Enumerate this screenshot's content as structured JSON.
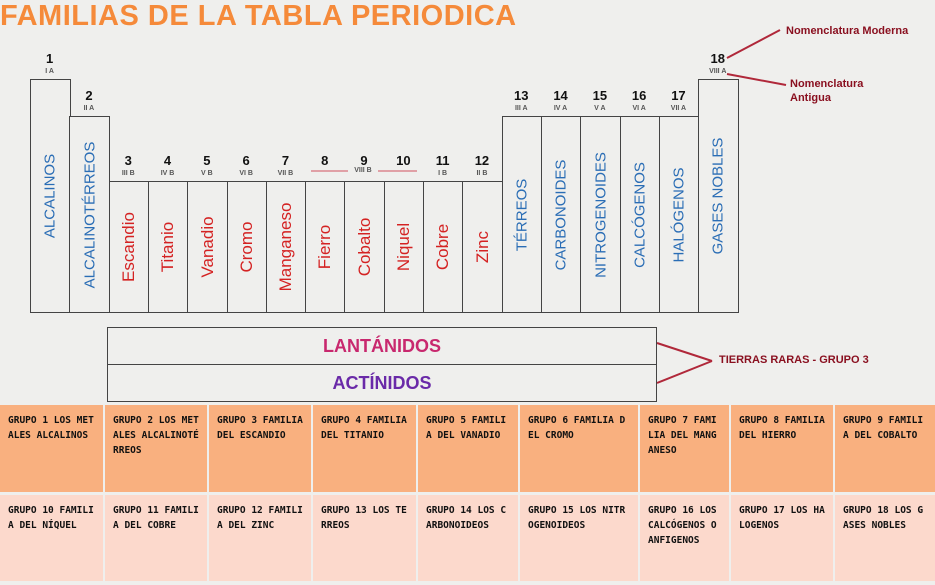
{
  "title": "FAMILIAS DE LA TABLA PERIODICA",
  "annotations": {
    "modern": "Nomenclatura Moderna",
    "old": "Nomenclatura Antigua",
    "rare_earths": "TIERRAS RARAS  - GRUPO 3",
    "lines_color": "#b0283a"
  },
  "groups": [
    {
      "num": "1",
      "roman": "I A",
      "name": "ALCALINOS",
      "type": "s"
    },
    {
      "num": "2",
      "roman": "II A",
      "name": "ALCALINOTÉRREOS",
      "type": "s"
    },
    {
      "num": "3",
      "roman": "III B",
      "name": "Escandio",
      "type": "d"
    },
    {
      "num": "4",
      "roman": "IV B",
      "name": "Titanio",
      "type": "d"
    },
    {
      "num": "5",
      "roman": "V B",
      "name": "Vanadio",
      "type": "d"
    },
    {
      "num": "6",
      "roman": "VI B",
      "name": "Cromo",
      "type": "d"
    },
    {
      "num": "7",
      "roman": "VII B",
      "name": "Manganeso",
      "type": "d"
    },
    {
      "num": "8",
      "roman": "",
      "name": "Fierro",
      "type": "d"
    },
    {
      "num": "9",
      "roman": "",
      "name": "Cobalto",
      "type": "d"
    },
    {
      "num": "10",
      "roman": "",
      "name": "Niquel",
      "type": "d"
    },
    {
      "num": "11",
      "roman": "I B",
      "name": "Cobre",
      "type": "d"
    },
    {
      "num": "12",
      "roman": "II B",
      "name": "Zinc",
      "type": "d"
    },
    {
      "num": "13",
      "roman": "III A",
      "name": "TÉRREOS",
      "type": "s"
    },
    {
      "num": "14",
      "roman": "IV A",
      "name": "CARBONOIDES",
      "type": "s"
    },
    {
      "num": "15",
      "roman": "V A",
      "name": "NITROGENOIDES",
      "type": "s"
    },
    {
      "num": "16",
      "roman": "VI A",
      "name": "CALCÓGENOS",
      "type": "s"
    },
    {
      "num": "17",
      "roman": "VII A",
      "name": "HALÓGENOS",
      "type": "s"
    },
    {
      "num": "18",
      "roman": "VIII A",
      "name": "GASES NOBLES",
      "type": "s"
    }
  ],
  "viii_b": "VIII B",
  "lanthanides": "LANTÁNIDOS",
  "actinides": "ACTÍNIDOS",
  "colors": {
    "lanthanides": "#c8286e",
    "actinides": "#6a2aa8"
  },
  "table": [
    [
      "GRUPO  1 LOS METALES ALCALINOS",
      "GRUPO 2 LOS METALES ALCALINOTÉRREOS",
      "GRUPO 3 FAMILIA DEL ESCANDIO",
      "GRUPO 4 FAMILIA DEL TITANIO",
      "GRUPO 5 FAMILIA DEL VANADIO",
      "GRUPO 6 FAMILIA DEL CROMO",
      "GRUPO 7 FAMILIA DEL MANGANESO",
      "GRUPO 8 FAMILIA DEL HIERRO",
      "GRUPO 9 FAMILIA DEL COBALTO"
    ],
    [
      "GRUPO 10 FAMILIA DEL NÍQUEL",
      "GRUPO 11 FAMILIA DEL COBRE",
      "GRUPO 12 FAMILIA DEL ZINC",
      "GRUPO 13 LOS TERREOS",
      "GRUPO 14 LOS CARBONOIDEOS",
      "GRUPO 15  LOS NITROGENOIDEOS",
      "GRUPO 16 LOS CALCÓGENOS O ANFIGENOS",
      "GRUPO 17 LOS HALOGENOS",
      "GRUPO 18 LOS GASES NOBLES"
    ]
  ]
}
